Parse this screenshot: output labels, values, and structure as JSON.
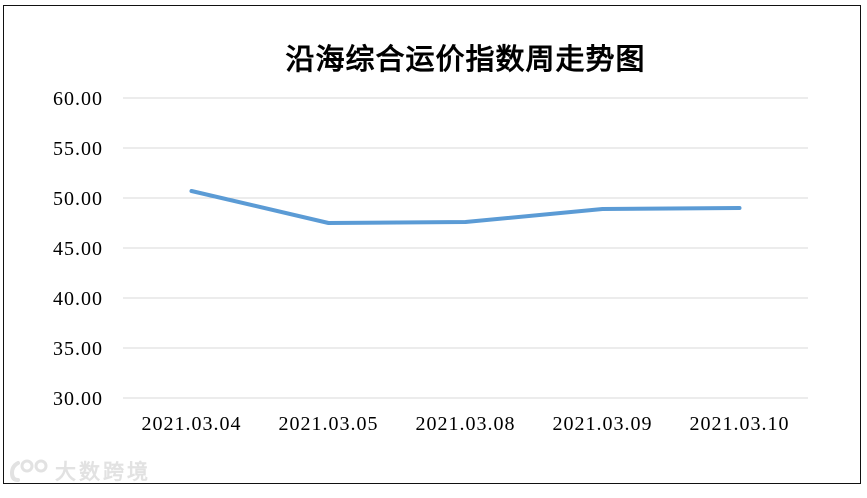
{
  "chart_data": {
    "type": "line",
    "title": "沿海综合运价指数周走势图",
    "categories": [
      "2021.03.04",
      "2021.03.05",
      "2021.03.08",
      "2021.03.09",
      "2021.03.10"
    ],
    "values": [
      50.7,
      47.5,
      47.6,
      48.9,
      49.0
    ],
    "series_name": "沿海综合运价指数",
    "ylim": [
      30,
      60
    ],
    "ytick_step": 5,
    "ytick_labels": [
      "60.00",
      "55.00",
      "50.00",
      "45.00",
      "40.00",
      "35.00",
      "30.00"
    ],
    "xlabel": "",
    "ylabel": "",
    "grid": "horizontal",
    "legend_position": "none",
    "line_color": "#5B9BD5",
    "gridline_color": "#D9D9D9",
    "label_color": "#000000"
  },
  "watermark": {
    "text": "大数跨境",
    "logo_icon": "100-circles-logo",
    "color": "#e2e2e2"
  }
}
